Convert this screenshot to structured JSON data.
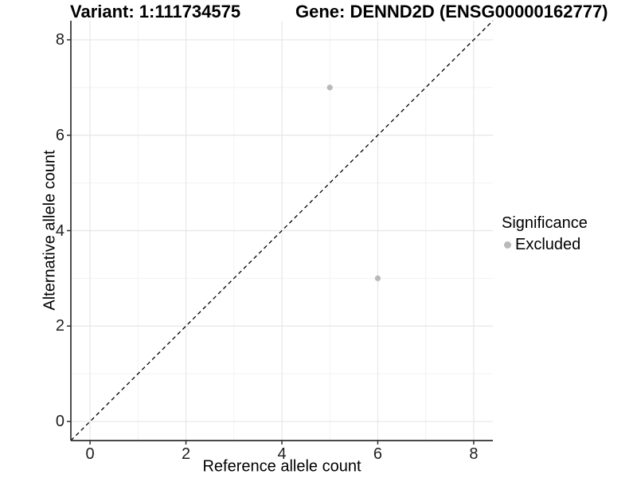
{
  "titles": {
    "variant": "Variant: 1:111734575",
    "gene": "Gene: DENND2D (ENSG00000162777)"
  },
  "legend": {
    "title": "Significance",
    "items": [
      {
        "label": "Excluded",
        "color": "#b9b9b9"
      }
    ]
  },
  "colors": {
    "point": "#b9b9b9",
    "grid_major": "#e6e6e6",
    "grid_minor": "#f2f2f2",
    "axis_line": "#2e2e2e",
    "reference_line": "#000000",
    "tick_text": "#1f1f1f"
  },
  "chart_data": {
    "type": "scatter",
    "title_left": "Variant: 1:111734575",
    "title_right": "Gene: DENND2D (ENSG00000162777)",
    "xlabel": "Reference allele count",
    "ylabel": "Alternative allele count",
    "xlim": [
      -0.4,
      8.4
    ],
    "ylim": [
      -0.4,
      8.4
    ],
    "x_major_ticks": [
      0,
      2,
      4,
      6,
      8
    ],
    "y_major_ticks": [
      0,
      2,
      4,
      6,
      8
    ],
    "x_minor_gridlines": [
      1,
      3,
      5,
      7
    ],
    "y_minor_gridlines": [
      1,
      3,
      5,
      7
    ],
    "grid": true,
    "legend_position": "right",
    "series": [
      {
        "name": "Excluded",
        "color": "#b9b9b9",
        "points": [
          {
            "x": 5,
            "y": 7
          },
          {
            "x": 6,
            "y": 3
          }
        ]
      }
    ],
    "reference_line": {
      "type": "identity",
      "style": "dashed",
      "from": [
        -0.4,
        -0.4
      ],
      "to": [
        8.4,
        8.4
      ]
    }
  }
}
